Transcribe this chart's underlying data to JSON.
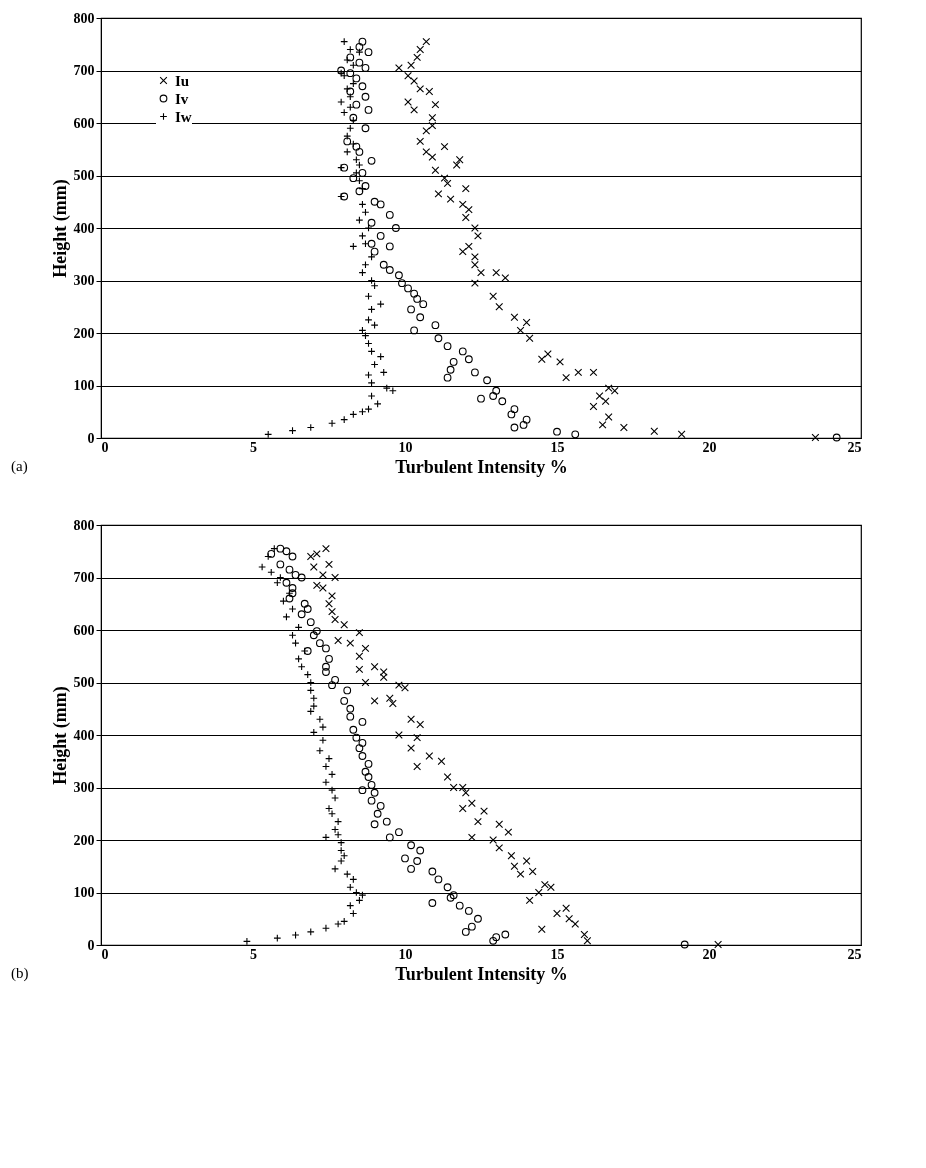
{
  "chart_data": [
    {
      "type": "scatter",
      "xlabel": "Turbulent Intensity %",
      "ylabel": "Height (mm)",
      "annotations": [
        "(a)"
      ],
      "xlim": [
        0,
        25
      ],
      "xticks": [
        0,
        5,
        10,
        15,
        20,
        25
      ],
      "ylim": [
        0,
        800
      ],
      "yticks": [
        0,
        100,
        200,
        300,
        400,
        500,
        600,
        700,
        800
      ],
      "grid": "y",
      "legend": "top left",
      "series": [
        {
          "name": "Iu",
          "color": "#000000",
          "marker": "cross",
          "x": [
            10.7,
            10.5,
            10.4,
            10.2,
            9.8,
            10.1,
            10.3,
            10.5,
            10.8,
            10.1,
            10.3,
            11,
            10.9,
            10.9,
            10.7,
            11.3,
            10.5,
            10.7,
            10.9,
            11.8,
            11.7,
            11.0,
            11.3,
            11.4,
            12.0,
            11.1,
            11.5,
            11.9,
            12.1,
            12.0,
            12.3,
            12.4,
            12.1,
            11.9,
            12.3,
            12.5,
            12.3,
            12.3,
            13,
            13.3,
            12.9,
            13.1,
            13.6,
            14.0,
            13.8,
            14.1,
            14.7,
            14.5,
            15.1,
            15.7,
            15.3,
            16.2,
            16.7,
            16.4,
            16.9,
            16.6,
            16.2,
            16.7,
            16.5,
            17.2,
            18.2,
            19.1,
            23.5
          ],
          "values": [
            755,
            740,
            725,
            710,
            705,
            690,
            680,
            665,
            660,
            640,
            625,
            635,
            610,
            595,
            585,
            555,
            565,
            545,
            535,
            530,
            520,
            510,
            495,
            485,
            475,
            465,
            455,
            445,
            435,
            420,
            400,
            385,
            365,
            355,
            345,
            315,
            330,
            295,
            315,
            305,
            270,
            250,
            230,
            220,
            205,
            190,
            160,
            150,
            145,
            125,
            115,
            125,
            95,
            80,
            90,
            70,
            60,
            40,
            25,
            20,
            13,
            7,
            1
          ]
        },
        {
          "name": "Iv",
          "color": "#000000",
          "marker": "circle",
          "x": [
            8.6,
            8.5,
            8.8,
            8.2,
            8.5,
            8.7,
            8.2,
            7.9,
            8.4,
            8.6,
            8.2,
            8.7,
            8.8,
            8.4,
            8.3,
            8.7,
            8.1,
            8.4,
            8.5,
            8.9,
            8.0,
            8.6,
            8.3,
            8.7,
            8.5,
            8.0,
            9.0,
            9.2,
            9.5,
            8.9,
            9.7,
            9.2,
            9.5,
            8.9,
            9.0,
            9.3,
            9.5,
            9.8,
            9.9,
            10.1,
            10.3,
            10.4,
            10.6,
            10.2,
            10.5,
            11.0,
            10.3,
            11.1,
            11.4,
            11.9,
            11.6,
            12.1,
            11.5,
            12.3,
            11.4,
            12.7,
            13.0,
            12.9,
            12.5,
            13.2,
            13.6,
            13.5,
            14.0,
            13.9,
            13.6,
            15.0,
            15.6,
            24.2
          ],
          "values": [
            755,
            745,
            735,
            725,
            715,
            705,
            695,
            700,
            685,
            670,
            660,
            650,
            625,
            635,
            610,
            590,
            565,
            555,
            545,
            528,
            515,
            505,
            495,
            480,
            470,
            460,
            450,
            445,
            425,
            410,
            400,
            385,
            365,
            370,
            355,
            330,
            320,
            310,
            295,
            285,
            275,
            265,
            255,
            245,
            230,
            215,
            205,
            190,
            175,
            165,
            145,
            150,
            130,
            125,
            115,
            110,
            90,
            80,
            75,
            70,
            55,
            45,
            35,
            25,
            20,
            12,
            7,
            1
          ]
        },
        {
          "name": "Iw",
          "color": "#000000",
          "marker": "plus",
          "x": [
            8.0,
            8.2,
            8.5,
            8.1,
            8.3,
            7.9,
            8.0,
            8.3,
            8.1,
            8.2,
            7.9,
            8.2,
            8.0,
            8.3,
            8.2,
            8.1,
            8.3,
            8.1,
            8.4,
            8.5,
            7.9,
            8.4,
            8.5,
            8.6,
            7.9,
            8.6,
            8.7,
            8.5,
            8.8,
            8.6,
            8.7,
            8.3,
            8.9,
            8.7,
            8.6,
            8.9,
            9.0,
            8.8,
            9.2,
            8.9,
            8.8,
            9.0,
            8.6,
            8.7,
            8.8,
            8.9,
            9.2,
            9.0,
            9.3,
            8.8,
            8.9,
            9.4,
            9.6,
            8.9,
            9.1,
            8.8,
            8.6,
            8.3,
            8.0,
            7.6,
            6.9,
            6.3,
            5.5
          ],
          "values": [
            755,
            740,
            735,
            720,
            710,
            695,
            690,
            675,
            665,
            650,
            640,
            630,
            620,
            605,
            590,
            575,
            560,
            545,
            530,
            520,
            515,
            505,
            490,
            475,
            460,
            445,
            430,
            415,
            400,
            385,
            370,
            365,
            345,
            330,
            315,
            300,
            290,
            270,
            255,
            245,
            225,
            215,
            205,
            195,
            180,
            165,
            155,
            140,
            125,
            120,
            105,
            95,
            90,
            80,
            65,
            55,
            50,
            45,
            35,
            28,
            20,
            14,
            7
          ]
        }
      ]
    },
    {
      "type": "scatter",
      "xlabel": "Turbulent Intensity %",
      "ylabel": "Height (mm)",
      "annotations": [
        "(b)"
      ],
      "xlim": [
        0,
        25
      ],
      "xticks": [
        0,
        5,
        10,
        15,
        20,
        25
      ],
      "ylim": [
        0,
        800
      ],
      "yticks": [
        0,
        100,
        200,
        300,
        400,
        500,
        600,
        700,
        800
      ],
      "grid": "y",
      "legend": "top left",
      "series": [
        {
          "name": "Iu",
          "color": "#000000",
          "marker": "cross",
          "x": [
            7.4,
            7.5,
            7.1,
            6.9,
            7.0,
            7.3,
            7.7,
            7.1,
            7.3,
            7.6,
            7.5,
            7.6,
            7.7,
            8.0,
            8.5,
            7.8,
            8.2,
            8.7,
            8.5,
            9.0,
            8.5,
            9.3,
            9.3,
            8.7,
            9.8,
            9.5,
            10.0,
            9.0,
            9.6,
            10.2,
            10.5,
            9.8,
            10.4,
            10.2,
            10.8,
            11.2,
            10.4,
            11.4,
            11.9,
            11.6,
            12.0,
            12.2,
            11.9,
            12.6,
            12.4,
            13.1,
            12.2,
            13.4,
            12.9,
            13.1,
            13.5,
            14.0,
            13.6,
            14.2,
            13.8,
            14.6,
            14.4,
            14.1,
            14.8,
            15.3,
            15.0,
            15.4,
            15.6,
            14.5,
            15.9,
            16.0,
            20.3
          ],
          "values": [
            755,
            725,
            745,
            740,
            720,
            705,
            700,
            685,
            680,
            665,
            650,
            635,
            620,
            610,
            595,
            580,
            575,
            565,
            550,
            530,
            525,
            520,
            510,
            500,
            495,
            470,
            490,
            465,
            460,
            430,
            420,
            400,
            395,
            375,
            360,
            350,
            340,
            320,
            300,
            300,
            290,
            270,
            260,
            255,
            235,
            230,
            205,
            215,
            200,
            185,
            170,
            160,
            150,
            140,
            135,
            115,
            100,
            85,
            110,
            70,
            60,
            50,
            40,
            30,
            20,
            8,
            1
          ]
        },
        {
          "name": "Iv",
          "color": "#000000",
          "marker": "circle",
          "x": [
            5.9,
            5.6,
            6.1,
            6.3,
            5.9,
            6.2,
            6.4,
            6.6,
            6.1,
            6.3,
            6.3,
            6.2,
            6.7,
            6.8,
            6.6,
            6.9,
            7.1,
            7.0,
            7.2,
            6.8,
            7.4,
            7.5,
            7.4,
            7.4,
            7.7,
            7.6,
            8.1,
            8.0,
            8.2,
            8.2,
            8.6,
            8.3,
            8.4,
            8.6,
            8.5,
            8.6,
            8.8,
            8.7,
            8.8,
            8.9,
            8.6,
            9.0,
            8.9,
            9.2,
            9.1,
            9.4,
            9.0,
            9.8,
            9.5,
            10.2,
            10.5,
            10.0,
            10.4,
            10.2,
            10.9,
            11.1,
            11.4,
            11.6,
            11.5,
            10.9,
            11.8,
            12.1,
            12.4,
            12.2,
            12.0,
            13.0,
            13.3,
            12.9,
            19.2
          ],
          "values": [
            755,
            745,
            750,
            740,
            725,
            715,
            705,
            700,
            690,
            680,
            670,
            660,
            650,
            640,
            630,
            615,
            598,
            590,
            575,
            560,
            565,
            545,
            530,
            520,
            505,
            495,
            485,
            465,
            450,
            435,
            425,
            410,
            395,
            385,
            375,
            360,
            345,
            330,
            320,
            305,
            295,
            290,
            275,
            265,
            250,
            235,
            230,
            215,
            205,
            190,
            180,
            165,
            160,
            145,
            140,
            125,
            110,
            95,
            90,
            80,
            75,
            65,
            50,
            35,
            25,
            15,
            20,
            8,
            1
          ]
        },
        {
          "name": "Iw",
          "color": "#000000",
          "marker": "plus",
          "x": [
            5.7,
            5.5,
            5.3,
            5.6,
            5.9,
            5.8,
            6.2,
            6.0,
            6.3,
            6.1,
            6.5,
            6.3,
            6.4,
            6.7,
            6.5,
            6.6,
            6.8,
            6.9,
            6.9,
            7.0,
            7.0,
            6.9,
            7.2,
            7.3,
            7.0,
            7.3,
            7.2,
            7.5,
            7.4,
            7.6,
            7.4,
            7.6,
            7.7,
            7.5,
            7.6,
            7.8,
            7.7,
            7.8,
            7.4,
            7.9,
            7.9,
            8.0,
            7.9,
            7.7,
            8.1,
            8.3,
            8.2,
            8.4,
            8.6,
            8.5,
            8.2,
            8.3,
            8.0,
            7.8,
            7.4,
            6.9,
            6.4,
            5.8,
            4.8
          ],
          "values": [
            755,
            740,
            720,
            710,
            700,
            690,
            670,
            655,
            640,
            625,
            605,
            590,
            575,
            560,
            545,
            530,
            515,
            500,
            485,
            470,
            455,
            445,
            430,
            415,
            405,
            390,
            370,
            355,
            340,
            325,
            310,
            295,
            280,
            260,
            250,
            235,
            220,
            210,
            205,
            195,
            180,
            170,
            160,
            145,
            135,
            125,
            110,
            100,
            95,
            85,
            75,
            60,
            45,
            40,
            32,
            25,
            19,
            13,
            7
          ]
        }
      ]
    }
  ]
}
